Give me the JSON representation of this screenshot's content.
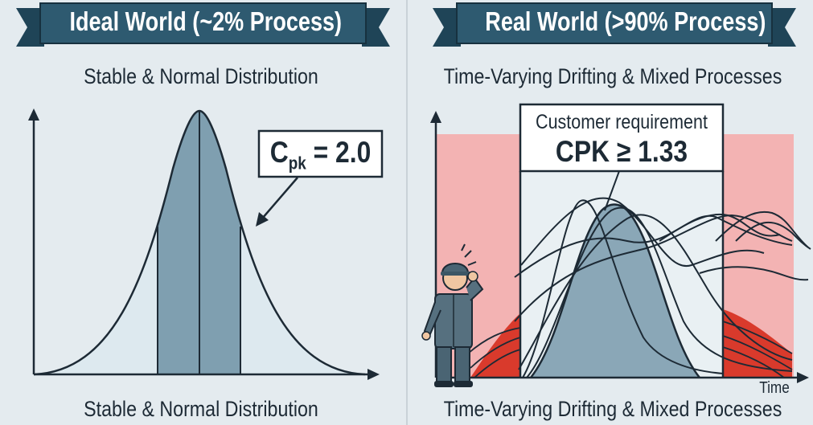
{
  "left": {
    "banner": "Ideal World (~2% Process)",
    "subtitle_top": "Stable & Normal Distribution",
    "subtitle_bottom": "Stable & Normal Distribution",
    "callout": {
      "prefix": "C",
      "subscript": "pk",
      "suffix": " = 2.0"
    }
  },
  "right": {
    "banner": "Real World (>90% Process)",
    "subtitle_top": "Time-Varying Drifting & Mixed Processes",
    "subtitle_bottom": "Time-Varying Drifting & Mixed Processes",
    "requirement_label": "Customer requirement",
    "requirement_value": "CPK ≥ 1.33",
    "time_label": "Time"
  },
  "colors": {
    "banner": "#2e5a70",
    "curve_fill_light": "#dde9ef",
    "curve_fill_dark": "#7f9fb0",
    "out_of_spec": "#f3b3b3",
    "out_of_spec_dark": "#d93a2c",
    "outline": "#1d2a35"
  },
  "icons": [
    "worker-figure-icon",
    "stress-lines-icon"
  ]
}
